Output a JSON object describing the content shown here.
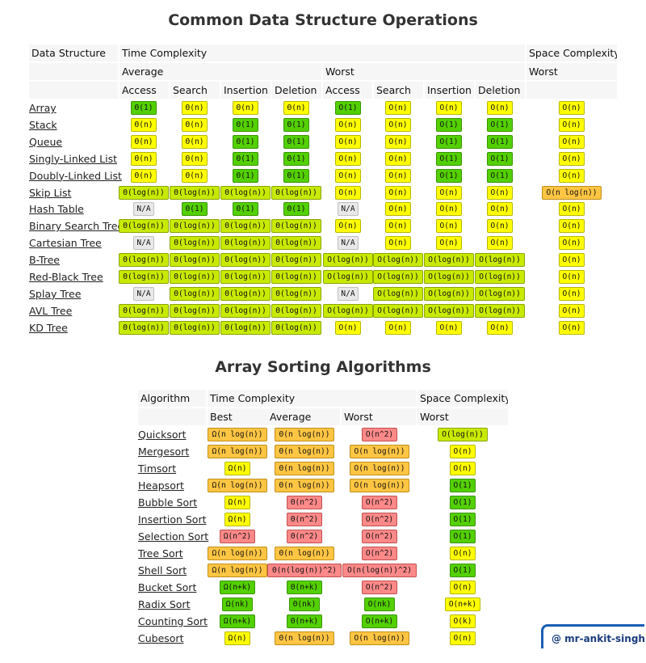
{
  "colors": {
    "green": "#53d000",
    "yellow_green": "#c8ea00",
    "yellow": "#ffff00",
    "orange": "#ffc543",
    "red": "#ff8989",
    "gray": "#e8e8e8"
  },
  "ds_table": {
    "title": "Common Data Structure Operations",
    "header": {
      "col0": "Data Structure",
      "time": "Time Complexity",
      "space": "Space Complexity",
      "average": "Average",
      "worst": "Worst",
      "space_worst": "Worst",
      "ops": [
        "Access",
        "Search",
        "Insertion",
        "Deletion",
        "Access",
        "Search",
        "Insertion",
        "Deletion"
      ]
    },
    "rows": [
      {
        "name": "Array",
        "cells": [
          [
            "Θ(1)",
            "g"
          ],
          [
            "Θ(n)",
            "y"
          ],
          [
            "Θ(n)",
            "y"
          ],
          [
            "Θ(n)",
            "y"
          ],
          [
            "O(1)",
            "g"
          ],
          [
            "O(n)",
            "y"
          ],
          [
            "O(n)",
            "y"
          ],
          [
            "O(n)",
            "y"
          ],
          [
            "O(n)",
            "y"
          ]
        ]
      },
      {
        "name": "Stack",
        "cells": [
          [
            "Θ(n)",
            "y"
          ],
          [
            "Θ(n)",
            "y"
          ],
          [
            "Θ(1)",
            "g"
          ],
          [
            "Θ(1)",
            "g"
          ],
          [
            "O(n)",
            "y"
          ],
          [
            "O(n)",
            "y"
          ],
          [
            "O(1)",
            "g"
          ],
          [
            "O(1)",
            "g"
          ],
          [
            "O(n)",
            "y"
          ]
        ]
      },
      {
        "name": "Queue",
        "cells": [
          [
            "Θ(n)",
            "y"
          ],
          [
            "Θ(n)",
            "y"
          ],
          [
            "Θ(1)",
            "g"
          ],
          [
            "Θ(1)",
            "g"
          ],
          [
            "O(n)",
            "y"
          ],
          [
            "O(n)",
            "y"
          ],
          [
            "O(1)",
            "g"
          ],
          [
            "O(1)",
            "g"
          ],
          [
            "O(n)",
            "y"
          ]
        ]
      },
      {
        "name": "Singly-Linked List",
        "cells": [
          [
            "Θ(n)",
            "y"
          ],
          [
            "Θ(n)",
            "y"
          ],
          [
            "Θ(1)",
            "g"
          ],
          [
            "Θ(1)",
            "g"
          ],
          [
            "O(n)",
            "y"
          ],
          [
            "O(n)",
            "y"
          ],
          [
            "O(1)",
            "g"
          ],
          [
            "O(1)",
            "g"
          ],
          [
            "O(n)",
            "y"
          ]
        ]
      },
      {
        "name": "Doubly-Linked List",
        "cells": [
          [
            "Θ(n)",
            "y"
          ],
          [
            "Θ(n)",
            "y"
          ],
          [
            "Θ(1)",
            "g"
          ],
          [
            "Θ(1)",
            "g"
          ],
          [
            "O(n)",
            "y"
          ],
          [
            "O(n)",
            "y"
          ],
          [
            "O(1)",
            "g"
          ],
          [
            "O(1)",
            "g"
          ],
          [
            "O(n)",
            "y"
          ]
        ]
      },
      {
        "name": "Skip List",
        "cells": [
          [
            "Θ(log(n))",
            "yg"
          ],
          [
            "Θ(log(n))",
            "yg"
          ],
          [
            "Θ(log(n))",
            "yg"
          ],
          [
            "Θ(log(n))",
            "yg"
          ],
          [
            "O(n)",
            "y"
          ],
          [
            "O(n)",
            "y"
          ],
          [
            "O(n)",
            "y"
          ],
          [
            "O(n)",
            "y"
          ],
          [
            "O(n log(n))",
            "o"
          ]
        ]
      },
      {
        "name": "Hash Table",
        "cells": [
          [
            "N/A",
            "n"
          ],
          [
            "Θ(1)",
            "g"
          ],
          [
            "Θ(1)",
            "g"
          ],
          [
            "Θ(1)",
            "g"
          ],
          [
            "N/A",
            "n"
          ],
          [
            "O(n)",
            "y"
          ],
          [
            "O(n)",
            "y"
          ],
          [
            "O(n)",
            "y"
          ],
          [
            "O(n)",
            "y"
          ]
        ]
      },
      {
        "name": "Binary Search Tree",
        "cells": [
          [
            "Θ(log(n))",
            "yg"
          ],
          [
            "Θ(log(n))",
            "yg"
          ],
          [
            "Θ(log(n))",
            "yg"
          ],
          [
            "Θ(log(n))",
            "yg"
          ],
          [
            "O(n)",
            "y"
          ],
          [
            "O(n)",
            "y"
          ],
          [
            "O(n)",
            "y"
          ],
          [
            "O(n)",
            "y"
          ],
          [
            "O(n)",
            "y"
          ]
        ]
      },
      {
        "name": "Cartesian Tree",
        "cells": [
          [
            "N/A",
            "n"
          ],
          [
            "Θ(log(n))",
            "yg"
          ],
          [
            "Θ(log(n))",
            "yg"
          ],
          [
            "Θ(log(n))",
            "yg"
          ],
          [
            "N/A",
            "n"
          ],
          [
            "O(n)",
            "y"
          ],
          [
            "O(n)",
            "y"
          ],
          [
            "O(n)",
            "y"
          ],
          [
            "O(n)",
            "y"
          ]
        ]
      },
      {
        "name": "B-Tree",
        "cells": [
          [
            "Θ(log(n))",
            "yg"
          ],
          [
            "Θ(log(n))",
            "yg"
          ],
          [
            "Θ(log(n))",
            "yg"
          ],
          [
            "Θ(log(n))",
            "yg"
          ],
          [
            "O(log(n))",
            "yg"
          ],
          [
            "O(log(n))",
            "yg"
          ],
          [
            "O(log(n))",
            "yg"
          ],
          [
            "O(log(n))",
            "yg"
          ],
          [
            "O(n)",
            "y"
          ]
        ]
      },
      {
        "name": "Red-Black Tree",
        "cells": [
          [
            "Θ(log(n))",
            "yg"
          ],
          [
            "Θ(log(n))",
            "yg"
          ],
          [
            "Θ(log(n))",
            "yg"
          ],
          [
            "Θ(log(n))",
            "yg"
          ],
          [
            "O(log(n))",
            "yg"
          ],
          [
            "O(log(n))",
            "yg"
          ],
          [
            "O(log(n))",
            "yg"
          ],
          [
            "O(log(n))",
            "yg"
          ],
          [
            "O(n)",
            "y"
          ]
        ]
      },
      {
        "name": "Splay Tree",
        "cells": [
          [
            "N/A",
            "n"
          ],
          [
            "Θ(log(n))",
            "yg"
          ],
          [
            "Θ(log(n))",
            "yg"
          ],
          [
            "Θ(log(n))",
            "yg"
          ],
          [
            "N/A",
            "n"
          ],
          [
            "O(log(n))",
            "yg"
          ],
          [
            "O(log(n))",
            "yg"
          ],
          [
            "O(log(n))",
            "yg"
          ],
          [
            "O(n)",
            "y"
          ]
        ]
      },
      {
        "name": "AVL Tree",
        "cells": [
          [
            "Θ(log(n))",
            "yg"
          ],
          [
            "Θ(log(n))",
            "yg"
          ],
          [
            "Θ(log(n))",
            "yg"
          ],
          [
            "Θ(log(n))",
            "yg"
          ],
          [
            "O(log(n))",
            "yg"
          ],
          [
            "O(log(n))",
            "yg"
          ],
          [
            "O(log(n))",
            "yg"
          ],
          [
            "O(log(n))",
            "yg"
          ],
          [
            "O(n)",
            "y"
          ]
        ]
      },
      {
        "name": "KD Tree",
        "cells": [
          [
            "Θ(log(n))",
            "yg"
          ],
          [
            "Θ(log(n))",
            "yg"
          ],
          [
            "Θ(log(n))",
            "yg"
          ],
          [
            "Θ(log(n))",
            "yg"
          ],
          [
            "O(n)",
            "y"
          ],
          [
            "O(n)",
            "y"
          ],
          [
            "O(n)",
            "y"
          ],
          [
            "O(n)",
            "y"
          ],
          [
            "O(n)",
            "y"
          ]
        ]
      }
    ]
  },
  "sort_table": {
    "title": "Array Sorting Algorithms",
    "header": {
      "col0": "Algorithm",
      "time": "Time Complexity",
      "space": "Space Complexity",
      "best": "Best",
      "average": "Average",
      "worst": "Worst",
      "space_worst": "Worst"
    },
    "rows": [
      {
        "name": "Quicksort",
        "cells": [
          [
            "Ω(n log(n))",
            "o"
          ],
          [
            "Θ(n log(n))",
            "o"
          ],
          [
            "O(n^2)",
            "r"
          ],
          [
            "O(log(n))",
            "yg"
          ]
        ]
      },
      {
        "name": "Mergesort",
        "cells": [
          [
            "Ω(n log(n))",
            "o"
          ],
          [
            "Θ(n log(n))",
            "o"
          ],
          [
            "O(n log(n))",
            "o"
          ],
          [
            "O(n)",
            "y"
          ]
        ]
      },
      {
        "name": "Timsort",
        "cells": [
          [
            "Ω(n)",
            "y"
          ],
          [
            "Θ(n log(n))",
            "o"
          ],
          [
            "O(n log(n))",
            "o"
          ],
          [
            "O(n)",
            "y"
          ]
        ]
      },
      {
        "name": "Heapsort",
        "cells": [
          [
            "Ω(n log(n))",
            "o"
          ],
          [
            "Θ(n log(n))",
            "o"
          ],
          [
            "O(n log(n))",
            "o"
          ],
          [
            "O(1)",
            "g"
          ]
        ]
      },
      {
        "name": "Bubble Sort",
        "cells": [
          [
            "Ω(n)",
            "y"
          ],
          [
            "Θ(n^2)",
            "r"
          ],
          [
            "O(n^2)",
            "r"
          ],
          [
            "O(1)",
            "g"
          ]
        ]
      },
      {
        "name": "Insertion Sort",
        "cells": [
          [
            "Ω(n)",
            "y"
          ],
          [
            "Θ(n^2)",
            "r"
          ],
          [
            "O(n^2)",
            "r"
          ],
          [
            "O(1)",
            "g"
          ]
        ]
      },
      {
        "name": "Selection Sort",
        "cells": [
          [
            "Ω(n^2)",
            "r"
          ],
          [
            "Θ(n^2)",
            "r"
          ],
          [
            "O(n^2)",
            "r"
          ],
          [
            "O(1)",
            "g"
          ]
        ]
      },
      {
        "name": "Tree Sort",
        "cells": [
          [
            "Ω(n log(n))",
            "o"
          ],
          [
            "Θ(n log(n))",
            "o"
          ],
          [
            "O(n^2)",
            "r"
          ],
          [
            "O(n)",
            "y"
          ]
        ]
      },
      {
        "name": "Shell Sort",
        "cells": [
          [
            "Ω(n log(n))",
            "o"
          ],
          [
            "Θ(n(log(n))^2)",
            "r"
          ],
          [
            "O(n(log(n))^2)",
            "r"
          ],
          [
            "O(1)",
            "g"
          ]
        ]
      },
      {
        "name": "Bucket Sort",
        "cells": [
          [
            "Ω(n+k)",
            "g"
          ],
          [
            "Θ(n+k)",
            "g"
          ],
          [
            "O(n^2)",
            "r"
          ],
          [
            "O(n)",
            "y"
          ]
        ]
      },
      {
        "name": "Radix Sort",
        "cells": [
          [
            "Ω(nk)",
            "g"
          ],
          [
            "Θ(nk)",
            "g"
          ],
          [
            "O(nk)",
            "g"
          ],
          [
            "O(n+k)",
            "y"
          ]
        ]
      },
      {
        "name": "Counting Sort",
        "cells": [
          [
            "Ω(n+k)",
            "g"
          ],
          [
            "Θ(n+k)",
            "g"
          ],
          [
            "O(n+k)",
            "g"
          ],
          [
            "O(k)",
            "y"
          ]
        ]
      },
      {
        "name": "Cubesort",
        "cells": [
          [
            "Ω(n)",
            "y"
          ],
          [
            "Θ(n log(n))",
            "o"
          ],
          [
            "O(n log(n))",
            "o"
          ],
          [
            "O(n)",
            "y"
          ]
        ]
      }
    ]
  },
  "watermark": "@ mr-ankit-singh"
}
